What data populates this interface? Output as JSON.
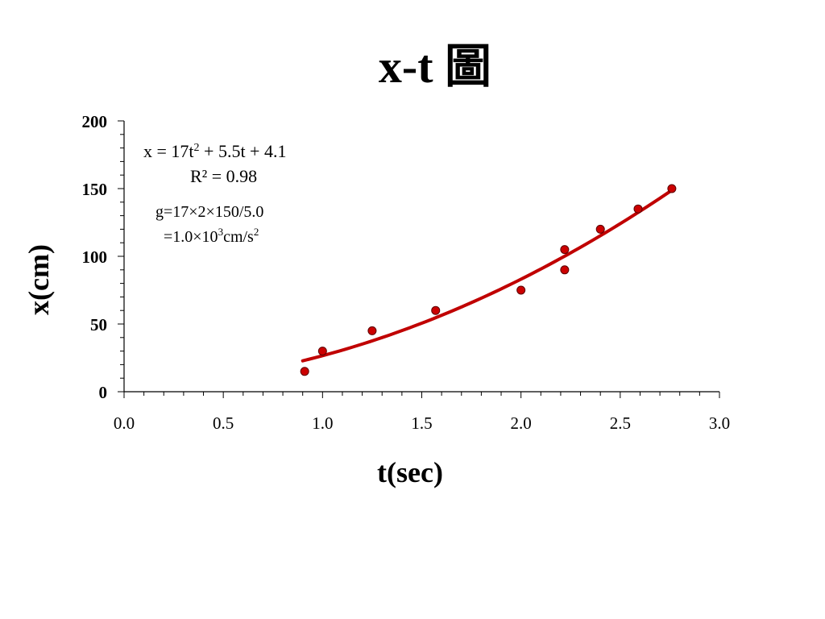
{
  "chart_data": {
    "type": "scatter",
    "title": "x-t 圖",
    "xlabel": "t(sec)",
    "ylabel": "x(cm)",
    "xlim": [
      0,
      3
    ],
    "ylim": [
      0,
      200
    ],
    "x_ticks": [
      "0.0",
      "0.5",
      "1.0",
      "1.5",
      "2.0",
      "2.5",
      "3.0"
    ],
    "y_ticks": [
      "0",
      "50",
      "100",
      "150",
      "200"
    ],
    "x_tick_values": [
      0,
      0.5,
      1.0,
      1.5,
      2.0,
      2.5,
      3.0
    ],
    "y_tick_values": [
      0,
      50,
      100,
      150,
      200
    ],
    "x_minor_step": 0.1,
    "y_minor_step": 10,
    "grid": false,
    "series": [
      {
        "x": [
          0.91,
          1.0,
          1.25,
          1.57,
          2.0,
          2.22,
          2.22,
          2.4,
          2.59,
          2.76
        ],
        "y": [
          15,
          30,
          45,
          60,
          75,
          90,
          105,
          120,
          135,
          150
        ],
        "color": "#cc0000"
      }
    ],
    "fit": {
      "coefficients": [
        17,
        5.5,
        4.1
      ],
      "x_range": [
        0.9,
        2.76
      ],
      "color": "#c00000",
      "equation_text": [
        "x = 17t",
        "2",
        " + 5.5t + 4.1"
      ],
      "r2_text": "R² = 0.98"
    },
    "annotation": {
      "line1": "g=17×2×150/5.0",
      "line2": [
        "=1.0×10",
        "3",
        "cm/s",
        "2"
      ]
    }
  }
}
